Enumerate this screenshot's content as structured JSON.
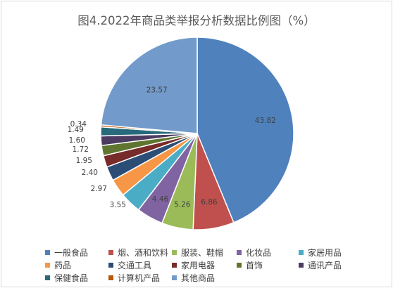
{
  "chart_data": {
    "type": "pie",
    "title": "图4.2022年商品类举报分析数据比例图（%）",
    "legend_position": "bottom",
    "slices": [
      {
        "label": "一般食品",
        "value": 43.82,
        "value_text": "43.82",
        "color": "#4F81BD"
      },
      {
        "label": "烟、酒和饮料",
        "value": 6.86,
        "value_text": "6.86",
        "color": "#C0504D"
      },
      {
        "label": "服装、鞋帽",
        "value": 5.26,
        "value_text": "5.26",
        "color": "#9BBB59"
      },
      {
        "label": "化妆品",
        "value": 4.46,
        "value_text": "4.46",
        "color": "#8064A2"
      },
      {
        "label": "家居用品",
        "value": 3.55,
        "value_text": "3.55",
        "color": "#4BACC6"
      },
      {
        "label": "药品",
        "value": 2.97,
        "value_text": "2.97",
        "color": "#F79646"
      },
      {
        "label": "交通工具",
        "value": 2.4,
        "value_text": "2.40",
        "color": "#2C4D75"
      },
      {
        "label": "家用电器",
        "value": 1.95,
        "value_text": "1.95",
        "color": "#772C2A"
      },
      {
        "label": "首饰",
        "value": 1.72,
        "value_text": "1.72",
        "color": "#5F7530"
      },
      {
        "label": "通讯产品",
        "value": 1.6,
        "value_text": "1.60",
        "color": "#4D3B62"
      },
      {
        "label": "保健食品",
        "value": 1.49,
        "value_text": "1.49",
        "color": "#276A7C"
      },
      {
        "label": "计算机产品",
        "value": 0.34,
        "value_text": "0.34",
        "color": "#B65708"
      },
      {
        "label": "其他商品",
        "value": 23.57,
        "value_text": "23.57",
        "color": "#729ACA"
      }
    ]
  }
}
